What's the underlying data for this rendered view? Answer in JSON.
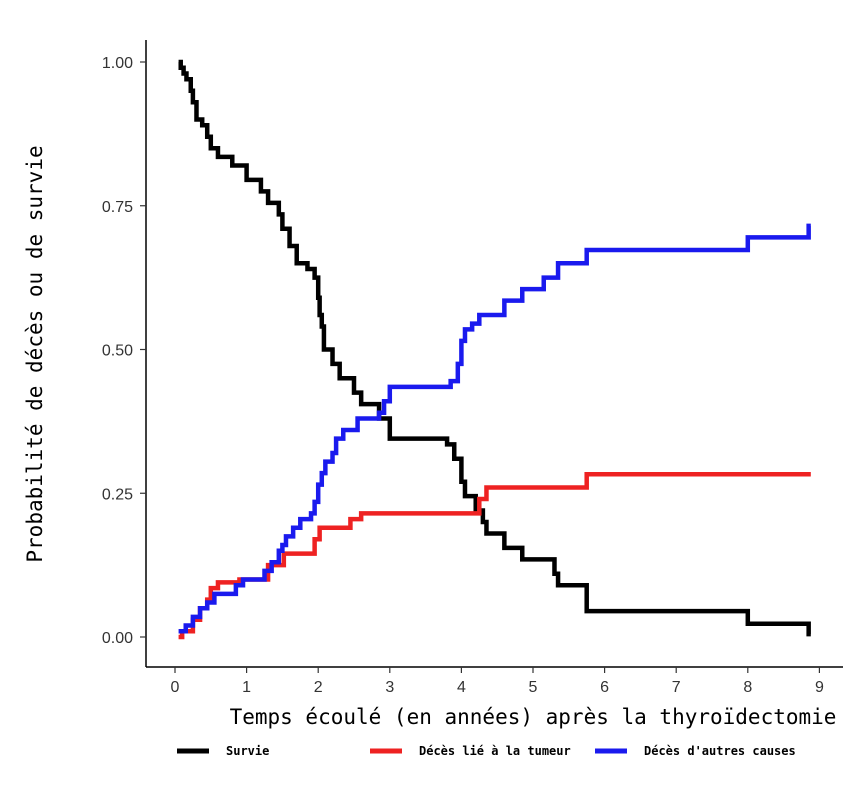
{
  "chart_data": {
    "type": "line",
    "step": true,
    "xlabel": "Temps écoulé (en années) après la thyroïdectomie",
    "ylabel": "Probabilité de décès ou de survie",
    "xlim": [
      0,
      9
    ],
    "ylim": [
      0,
      1
    ],
    "x_ticks": [
      "0",
      "1",
      "2",
      "3",
      "4",
      "5",
      "6",
      "7",
      "8",
      "9"
    ],
    "y_ticks": [
      "0.00",
      "0.25",
      "0.50",
      "0.75",
      "1.00"
    ],
    "grid": false,
    "legend_position": "bottom",
    "series": [
      {
        "name": "Survie",
        "color": "#000000",
        "points": [
          [
            0.05,
            1.0
          ],
          [
            0.08,
            0.99
          ],
          [
            0.12,
            0.98
          ],
          [
            0.16,
            0.97
          ],
          [
            0.22,
            0.95
          ],
          [
            0.25,
            0.93
          ],
          [
            0.3,
            0.9
          ],
          [
            0.38,
            0.89
          ],
          [
            0.45,
            0.87
          ],
          [
            0.5,
            0.85
          ],
          [
            0.6,
            0.835
          ],
          [
            0.8,
            0.82
          ],
          [
            1.0,
            0.795
          ],
          [
            1.2,
            0.775
          ],
          [
            1.3,
            0.755
          ],
          [
            1.45,
            0.735
          ],
          [
            1.5,
            0.71
          ],
          [
            1.6,
            0.68
          ],
          [
            1.7,
            0.65
          ],
          [
            1.85,
            0.64
          ],
          [
            1.95,
            0.625
          ],
          [
            2.0,
            0.59
          ],
          [
            2.02,
            0.56
          ],
          [
            2.05,
            0.54
          ],
          [
            2.08,
            0.5
          ],
          [
            2.2,
            0.475
          ],
          [
            2.3,
            0.45
          ],
          [
            2.5,
            0.425
          ],
          [
            2.6,
            0.405
          ],
          [
            2.85,
            0.38
          ],
          [
            3.0,
            0.345
          ],
          [
            3.8,
            0.335
          ],
          [
            3.9,
            0.31
          ],
          [
            4.0,
            0.27
          ],
          [
            4.05,
            0.245
          ],
          [
            4.2,
            0.22
          ],
          [
            4.3,
            0.2
          ],
          [
            4.35,
            0.18
          ],
          [
            4.6,
            0.155
          ],
          [
            4.85,
            0.135
          ],
          [
            5.3,
            0.11
          ],
          [
            5.35,
            0.09
          ],
          [
            5.75,
            0.045
          ],
          [
            8.0,
            0.023
          ],
          [
            8.85,
            0.005
          ]
        ],
        "end_x": 8.88
      },
      {
        "name": "Décès lié à la tumeur",
        "color": "#ee2222",
        "points": [
          [
            0.05,
            0.0
          ],
          [
            0.1,
            0.01
          ],
          [
            0.25,
            0.03
          ],
          [
            0.35,
            0.05
          ],
          [
            0.45,
            0.065
          ],
          [
            0.5,
            0.085
          ],
          [
            0.6,
            0.095
          ],
          [
            0.9,
            0.1
          ],
          [
            1.3,
            0.125
          ],
          [
            1.52,
            0.145
          ],
          [
            1.95,
            0.17
          ],
          [
            2.02,
            0.19
          ],
          [
            2.45,
            0.205
          ],
          [
            2.6,
            0.215
          ],
          [
            4.25,
            0.24
          ],
          [
            4.35,
            0.26
          ],
          [
            5.75,
            0.283
          ]
        ],
        "end_x": 8.88
      },
      {
        "name": "Décès d'autres causes",
        "color": "#1a1aee",
        "points": [
          [
            0.05,
            0.01
          ],
          [
            0.15,
            0.02
          ],
          [
            0.25,
            0.035
          ],
          [
            0.35,
            0.05
          ],
          [
            0.45,
            0.06
          ],
          [
            0.55,
            0.075
          ],
          [
            0.85,
            0.09
          ],
          [
            0.95,
            0.1
          ],
          [
            1.25,
            0.115
          ],
          [
            1.35,
            0.13
          ],
          [
            1.45,
            0.15
          ],
          [
            1.5,
            0.16
          ],
          [
            1.55,
            0.175
          ],
          [
            1.65,
            0.19
          ],
          [
            1.75,
            0.205
          ],
          [
            1.9,
            0.215
          ],
          [
            1.95,
            0.235
          ],
          [
            2.0,
            0.265
          ],
          [
            2.05,
            0.285
          ],
          [
            2.1,
            0.305
          ],
          [
            2.2,
            0.32
          ],
          [
            2.25,
            0.345
          ],
          [
            2.35,
            0.36
          ],
          [
            2.55,
            0.38
          ],
          [
            2.85,
            0.39
          ],
          [
            2.92,
            0.41
          ],
          [
            3.0,
            0.435
          ],
          [
            3.85,
            0.445
          ],
          [
            3.95,
            0.475
          ],
          [
            4.0,
            0.515
          ],
          [
            4.05,
            0.535
          ],
          [
            4.15,
            0.545
          ],
          [
            4.25,
            0.56
          ],
          [
            4.6,
            0.585
          ],
          [
            4.85,
            0.605
          ],
          [
            5.15,
            0.625
          ],
          [
            5.35,
            0.65
          ],
          [
            5.75,
            0.673
          ],
          [
            8.0,
            0.695
          ],
          [
            8.85,
            0.715
          ]
        ],
        "end_x": 8.88
      }
    ]
  }
}
